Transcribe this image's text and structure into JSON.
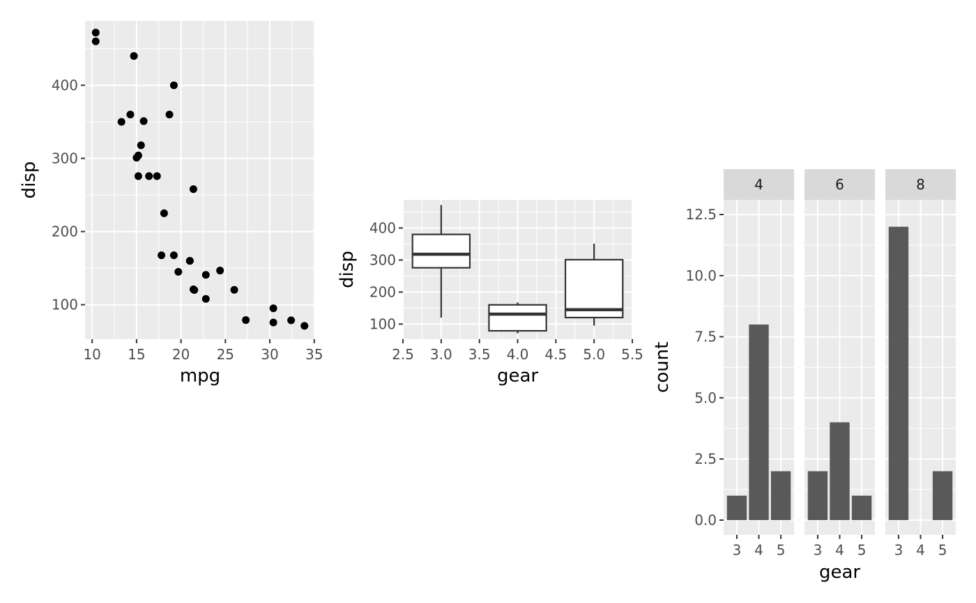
{
  "colors": {
    "panel_bg": "#ebebeb",
    "grid_major": "#ffffff",
    "strip_bg": "#d9d9d9",
    "point": "#000000",
    "bar": "#595959",
    "box_line": "#333333",
    "tick_text": "#4d4d4d"
  },
  "chart_data": [
    {
      "type": "scatter",
      "xlabel": "mpg",
      "ylabel": "disp",
      "xlim": [
        9.2,
        35.1
      ],
      "ylim": [
        53,
        488
      ],
      "x_ticks": [
        10,
        15,
        20,
        25,
        30,
        35
      ],
      "x_tick_labels": [
        "10",
        "15",
        "20",
        "25",
        "30",
        "35"
      ],
      "y_ticks": [
        100,
        200,
        300,
        400
      ],
      "y_tick_labels": [
        "100",
        "200",
        "300",
        "400"
      ],
      "grid": true,
      "points": [
        {
          "x": 10.4,
          "y": 472
        },
        {
          "x": 10.4,
          "y": 460
        },
        {
          "x": 14.7,
          "y": 440
        },
        {
          "x": 19.2,
          "y": 400
        },
        {
          "x": 14.3,
          "y": 360
        },
        {
          "x": 18.7,
          "y": 360
        },
        {
          "x": 13.3,
          "y": 350
        },
        {
          "x": 15.8,
          "y": 351
        },
        {
          "x": 15.5,
          "y": 318
        },
        {
          "x": 15.2,
          "y": 304
        },
        {
          "x": 15.0,
          "y": 301
        },
        {
          "x": 15.2,
          "y": 275.8
        },
        {
          "x": 16.4,
          "y": 275.8
        },
        {
          "x": 17.3,
          "y": 275.8
        },
        {
          "x": 21.4,
          "y": 258
        },
        {
          "x": 18.1,
          "y": 225
        },
        {
          "x": 17.8,
          "y": 167.6
        },
        {
          "x": 19.2,
          "y": 167.6
        },
        {
          "x": 21.0,
          "y": 160
        },
        {
          "x": 21.0,
          "y": 160
        },
        {
          "x": 19.7,
          "y": 145
        },
        {
          "x": 24.4,
          "y": 146.7
        },
        {
          "x": 22.8,
          "y": 140.8
        },
        {
          "x": 21.5,
          "y": 120.1
        },
        {
          "x": 21.4,
          "y": 121
        },
        {
          "x": 26.0,
          "y": 120.3
        },
        {
          "x": 22.8,
          "y": 108
        },
        {
          "x": 30.4,
          "y": 95.1
        },
        {
          "x": 27.3,
          "y": 79
        },
        {
          "x": 32.4,
          "y": 78.7
        },
        {
          "x": 30.4,
          "y": 75.7
        },
        {
          "x": 33.9,
          "y": 71.1
        }
      ]
    },
    {
      "type": "box",
      "xlabel": "gear",
      "ylabel": "disp",
      "xlim": [
        2.5,
        5.5
      ],
      "ylim": [
        53,
        488
      ],
      "x_ticks": [
        2.5,
        3.0,
        3.5,
        4.0,
        4.5,
        5.0,
        5.5
      ],
      "x_tick_labels": [
        "2.5",
        "3.0",
        "3.5",
        "4.0",
        "4.5",
        "5.0",
        "5.5"
      ],
      "y_ticks": [
        100,
        200,
        300,
        400
      ],
      "y_tick_labels": [
        "100",
        "200",
        "300",
        "400"
      ],
      "grid": true,
      "boxes": [
        {
          "x": 3,
          "whisker_low": 120.1,
          "q1": 275.8,
          "median": 318,
          "q3": 380,
          "whisker_high": 472
        },
        {
          "x": 4,
          "whisker_low": 71.1,
          "q1": 78.9,
          "median": 130.9,
          "q3": 160,
          "whisker_high": 167.6
        },
        {
          "x": 5,
          "whisker_low": 95.1,
          "q1": 120.3,
          "median": 145,
          "q3": 301,
          "whisker_high": 351
        }
      ]
    },
    {
      "type": "bar",
      "facet_by": "cyl",
      "xlabel": "gear",
      "ylabel": "count",
      "categories": [
        "3",
        "4",
        "5"
      ],
      "ylim": [
        -0.6,
        13.1
      ],
      "y_ticks": [
        0,
        2.5,
        5,
        7.5,
        10,
        12.5
      ],
      "y_tick_labels": [
        "0.0",
        "2.5",
        "5.0",
        "7.5",
        "10.0",
        "12.5"
      ],
      "grid": true,
      "facets": [
        {
          "label": "4",
          "values": [
            1,
            8,
            2
          ]
        },
        {
          "label": "6",
          "values": [
            2,
            4,
            1
          ]
        },
        {
          "label": "8",
          "values": [
            12,
            0,
            2
          ]
        }
      ]
    }
  ]
}
